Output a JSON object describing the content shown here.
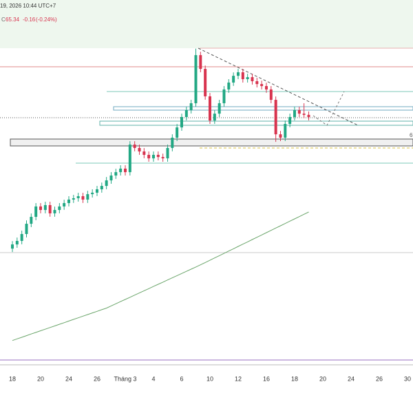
{
  "header": {
    "date": "19, 2026 10:44 UTC+7",
    "close_label": "C",
    "close": "65.34",
    "change": "-0.16",
    "change_pct": "(-0.24%)",
    "side_label": "6"
  },
  "chart_data": {
    "type": "candlestick",
    "categories": [
      "18",
      null,
      null,
      null,
      null,
      null,
      "20",
      null,
      null,
      null,
      null,
      null,
      "24",
      null,
      null,
      null,
      null,
      null,
      "26",
      null,
      null,
      null,
      null,
      null,
      "Tháng 3",
      null,
      null,
      null,
      null,
      null,
      "4",
      null,
      null,
      null,
      null,
      null,
      "6",
      null,
      null,
      null,
      null,
      null,
      "10",
      null,
      null,
      null,
      null,
      null,
      "12",
      null,
      null,
      null,
      null,
      null,
      "16",
      null,
      null,
      null,
      null,
      null,
      "18",
      null,
      null,
      null,
      null,
      null,
      "20",
      null,
      null,
      null,
      null,
      null,
      "24",
      null,
      null,
      null,
      null,
      null,
      "26",
      null,
      null,
      null,
      null,
      null,
      "30",
      null
    ],
    "open": [
      55.6,
      55.91,
      56.17,
      56.68,
      57.44,
      57.95,
      58.72,
      58.46,
      58.82,
      58.21,
      58.46,
      58.72,
      58.97,
      59.23,
      59.33,
      59.48,
      59.23,
      59.63,
      59.74,
      59.99,
      60.24,
      60.65,
      61.01,
      61.26,
      61.52,
      61.26,
      63.3,
      63.05,
      62.79,
      62.54,
      62.28,
      62.54,
      62.38,
      62.28,
      63.05,
      63.81,
      64.57,
      65.34,
      65.85,
      66.36,
      69.92,
      68.9,
      66.87,
      65.08,
      65.59,
      66.36,
      67.38,
      67.89,
      68.39,
      68.65,
      68.14,
      68.29,
      67.99,
      67.78,
      67.63,
      67.38,
      66.61,
      64.06,
      63.81,
      64.83,
      65.34,
      65.85,
      65.59,
      65.5,
      null,
      null,
      null,
      null,
      null,
      null,
      null,
      null,
      null,
      null,
      null,
      null,
      null,
      null,
      null,
      null,
      null,
      null,
      null,
      null,
      null,
      null
    ],
    "high": [
      56.16,
      56.42,
      56.93,
      57.69,
      58.2,
      58.97,
      58.97,
      59.07,
      59.07,
      58.71,
      58.97,
      59.22,
      59.48,
      59.58,
      59.73,
      59.73,
      59.88,
      59.99,
      60.24,
      60.49,
      60.9,
      61.26,
      61.51,
      61.77,
      61.77,
      63.55,
      63.55,
      63.3,
      63.04,
      62.79,
      62.79,
      62.79,
      62.63,
      63.3,
      64.06,
      64.82,
      65.59,
      66.1,
      66.61,
      70.4,
      70.17,
      69.15,
      67.12,
      65.84,
      66.61,
      67.63,
      68.14,
      68.64,
      68.9,
      68.9,
      68.54,
      68.54,
      68.24,
      68.03,
      67.88,
      67.63,
      66.86,
      64.31,
      65.08,
      65.59,
      66.1,
      66.1,
      66.36,
      65.75,
      null,
      null,
      null,
      null,
      null,
      null,
      null,
      null,
      null,
      null,
      null,
      null,
      null,
      null,
      null,
      null,
      null,
      null,
      null,
      null,
      null,
      null
    ],
    "low": [
      55.35,
      55.66,
      55.92,
      56.43,
      57.19,
      57.7,
      58.21,
      58.21,
      57.96,
      57.96,
      58.21,
      58.47,
      58.72,
      58.98,
      59.08,
      58.98,
      58.98,
      59.38,
      59.49,
      59.74,
      59.99,
      60.4,
      60.76,
      61.01,
      61.01,
      61.01,
      62.8,
      62.54,
      62.29,
      62.03,
      62.03,
      62.13,
      62.03,
      62.03,
      62.8,
      63.56,
      64.32,
      65.09,
      65.6,
      66.11,
      68.65,
      66.62,
      64.83,
      64.83,
      65.34,
      66.11,
      67.13,
      67.64,
      68.14,
      67.89,
      67.89,
      67.74,
      67.53,
      67.38,
      67.13,
      66.36,
      63.5,
      63.56,
      63.56,
      64.58,
      65.09,
      65.34,
      65.25,
      65.09,
      null,
      null,
      null,
      null,
      null,
      null,
      null,
      null,
      null,
      null,
      null,
      null,
      null,
      null,
      null,
      null,
      null,
      null,
      null,
      null,
      null,
      null
    ],
    "close": [
      55.91,
      56.17,
      56.68,
      57.44,
      57.95,
      58.72,
      58.46,
      58.82,
      58.21,
      58.46,
      58.72,
      58.97,
      59.23,
      59.33,
      59.48,
      59.23,
      59.63,
      59.74,
      59.99,
      60.24,
      60.65,
      61.01,
      61.26,
      61.52,
      61.26,
      63.3,
      63.05,
      62.79,
      62.54,
      62.28,
      62.54,
      62.38,
      62.28,
      63.05,
      63.81,
      64.57,
      65.34,
      65.85,
      66.36,
      69.92,
      68.9,
      66.87,
      65.08,
      65.59,
      66.36,
      67.38,
      67.89,
      68.39,
      68.65,
      68.14,
      68.29,
      67.99,
      67.78,
      67.63,
      67.38,
      66.61,
      64.06,
      63.81,
      64.83,
      65.34,
      65.85,
      65.59,
      65.5,
      65.34,
      null,
      null,
      null,
      null,
      null,
      null,
      null,
      null,
      null,
      null,
      null,
      null,
      null,
      null,
      null,
      null,
      null,
      null,
      null,
      null,
      null,
      null
    ],
    "moving_average": {
      "color": "#6aa56a",
      "values": [
        48.8,
        48.92,
        49.04,
        49.16,
        49.28,
        49.4,
        49.52,
        49.64,
        49.76,
        49.88,
        50.0,
        50.12,
        50.24,
        50.36,
        50.48,
        50.6,
        50.72,
        50.84,
        50.96,
        51.08,
        51.2,
        51.36,
        51.52,
        51.68,
        51.84,
        52.0,
        52.16,
        52.32,
        52.48,
        52.64,
        52.8,
        52.96,
        53.12,
        53.28,
        53.44,
        53.6,
        53.76,
        53.92,
        54.08,
        54.24,
        54.4,
        54.57,
        54.74,
        54.91,
        55.08,
        55.25,
        55.42,
        55.59,
        55.76,
        55.93,
        56.1,
        56.27,
        56.44,
        56.61,
        56.78,
        56.95,
        57.12,
        57.29,
        57.46,
        57.63,
        57.8,
        57.97,
        58.14,
        58.31,
        null,
        null,
        null,
        null,
        null,
        null,
        null,
        null,
        null,
        null,
        null,
        null,
        null,
        null,
        null,
        null,
        null,
        null,
        null,
        null,
        null,
        null
      ]
    },
    "up_color": "#22a884",
    "down_color": "#d8344f",
    "ylim": [
      47,
      74
    ]
  }
}
